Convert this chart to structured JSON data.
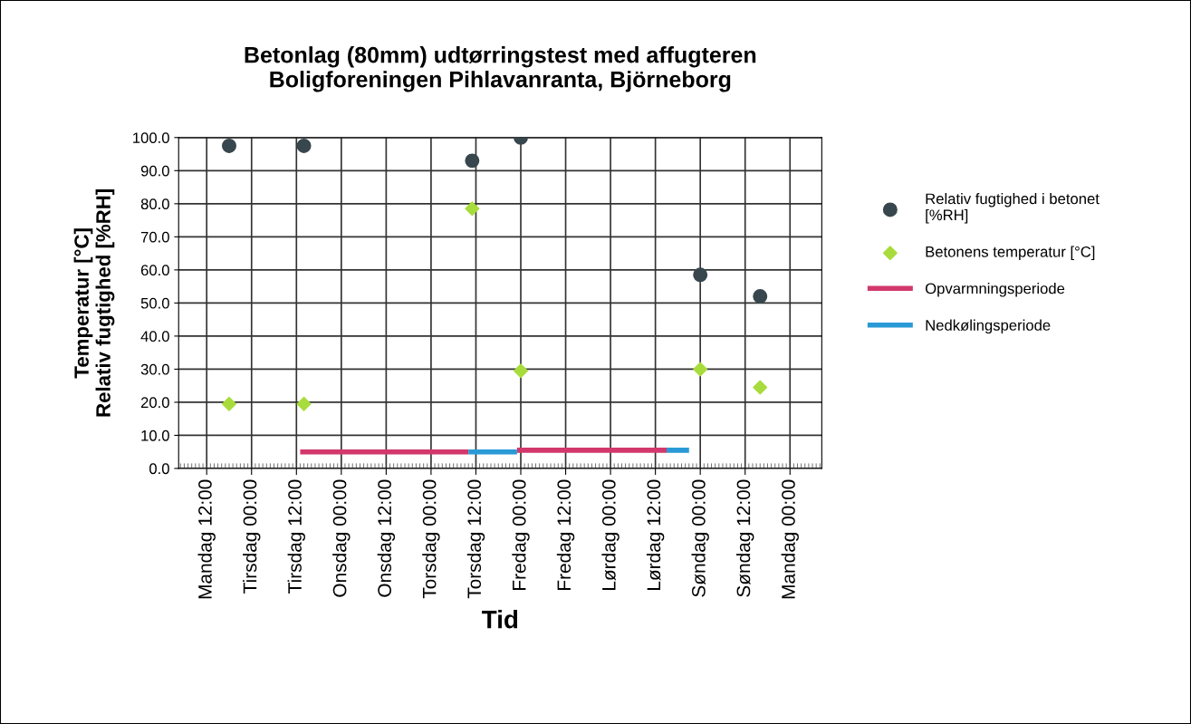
{
  "chart_data": {
    "type": "scatter",
    "title": "Betonlag (80mm) udtørringstest med affugteren\nBoligforeningen Pihlavanranta, Björneborg",
    "xlabel": "Tid",
    "ylabel": "Temperatur [°C]\nRelativ fugtighed [%RH]",
    "categories": [
      null,
      null,
      null,
      null,
      null,
      null,
      null,
      "Mandag 12:00",
      null,
      null,
      null,
      null,
      null,
      null,
      null,
      null,
      null,
      null,
      null,
      "Tirsdag 00:00",
      null,
      null,
      null,
      null,
      null,
      null,
      null,
      null,
      null,
      null,
      null,
      "Tirsdag 12:00",
      null,
      null,
      null,
      null,
      null,
      null,
      null,
      null,
      null,
      null,
      null,
      "Onsdag 00:00",
      null,
      null,
      null,
      null,
      null,
      null,
      null,
      null,
      null,
      null,
      null,
      "Onsdag 12:00",
      null,
      null,
      null,
      null,
      null,
      null,
      null,
      null,
      null,
      null,
      null,
      "Torsdag 00:00",
      null,
      null,
      null,
      null,
      null,
      null,
      null,
      null,
      null,
      null,
      null,
      "Torsdag 12:00",
      null,
      null,
      null,
      null,
      null,
      null,
      null,
      null,
      null,
      null,
      null,
      "Fredag 00:00",
      null,
      null,
      null,
      null,
      null,
      null,
      null,
      null,
      null,
      null,
      null,
      "Fredag 12:00",
      null,
      null,
      null,
      null,
      null,
      null,
      null,
      null,
      null,
      null,
      null,
      "Lørdag 00:00",
      null,
      null,
      null,
      null,
      null,
      null,
      null,
      null,
      null,
      null,
      null,
      "Lørdag 12:00",
      null,
      null,
      null,
      null,
      null,
      null,
      null,
      null,
      null,
      null,
      null,
      "Søndag 00:00",
      null,
      null,
      null,
      null,
      null,
      null,
      null,
      null,
      null,
      null,
      null,
      "Søndag 12:00",
      null,
      null,
      null,
      null,
      null,
      null,
      null,
      null,
      null,
      null,
      null,
      "Mandag 00:00",
      null,
      null,
      null,
      null,
      null,
      null,
      null,
      null
    ],
    "ylim": [
      0,
      100
    ],
    "yticks": [
      {
        "value": 0,
        "label": "0.0"
      },
      {
        "value": 10,
        "label": "10.0"
      },
      {
        "value": 20,
        "label": "20.0"
      },
      {
        "value": 30,
        "label": "30.0"
      },
      {
        "value": 40,
        "label": "40.0"
      },
      {
        "value": 50,
        "label": "50.0"
      },
      {
        "value": 60,
        "label": "60.0"
      },
      {
        "value": 70,
        "label": "70.0"
      },
      {
        "value": 80,
        "label": "80.0"
      },
      {
        "value": 90,
        "label": "90.0"
      },
      {
        "value": 100,
        "label": "100.0"
      }
    ],
    "grid": true,
    "legend": "right",
    "series": [
      {
        "name": "Relativ fugtighed i betonet\n[%RH]",
        "marker": "circle",
        "color": "#37474d",
        "values": [
          null,
          null,
          null,
          null,
          null,
          null,
          null,
          null,
          null,
          null,
          null,
          null,
          null,
          97.5,
          null,
          null,
          null,
          null,
          null,
          null,
          null,
          null,
          null,
          null,
          null,
          null,
          null,
          null,
          null,
          null,
          null,
          null,
          null,
          97.5,
          null,
          null,
          null,
          null,
          null,
          null,
          null,
          null,
          null,
          null,
          null,
          null,
          null,
          null,
          null,
          null,
          null,
          null,
          null,
          null,
          null,
          null,
          null,
          null,
          null,
          null,
          null,
          null,
          null,
          null,
          null,
          null,
          null,
          null,
          null,
          null,
          null,
          null,
          null,
          null,
          null,
          null,
          null,
          null,
          93,
          null,
          null,
          null,
          null,
          null,
          null,
          null,
          null,
          null,
          null,
          null,
          null,
          100,
          null,
          null,
          null,
          null,
          null,
          null,
          null,
          null,
          null,
          null,
          null,
          null,
          null,
          null,
          null,
          null,
          null,
          null,
          null,
          null,
          null,
          null,
          null,
          null,
          null,
          null,
          null,
          null,
          null,
          null,
          null,
          null,
          null,
          null,
          null,
          null,
          null,
          null,
          null,
          null,
          null,
          null,
          null,
          null,
          null,
          null,
          null,
          58.5,
          null,
          null,
          null,
          null,
          null,
          null,
          null,
          null,
          null,
          null,
          null,
          null,
          null,
          null,
          null,
          52,
          null,
          null,
          null,
          null,
          null,
          null,
          null,
          null,
          null,
          null,
          null,
          null,
          null,
          null,
          null,
          null
        ]
      },
      {
        "name": "Betonens temperatur [°C]",
        "marker": "diamond",
        "color": "#a8dc3c",
        "values": [
          null,
          null,
          null,
          null,
          null,
          null,
          null,
          null,
          null,
          null,
          null,
          null,
          null,
          19.5,
          null,
          null,
          null,
          null,
          null,
          null,
          null,
          null,
          null,
          null,
          null,
          null,
          null,
          null,
          null,
          null,
          null,
          null,
          null,
          19.5,
          null,
          null,
          null,
          null,
          null,
          null,
          null,
          null,
          null,
          null,
          null,
          null,
          null,
          null,
          null,
          null,
          null,
          null,
          null,
          null,
          null,
          null,
          null,
          null,
          null,
          null,
          null,
          null,
          null,
          null,
          null,
          null,
          null,
          null,
          null,
          null,
          null,
          null,
          null,
          null,
          null,
          null,
          null,
          null,
          78.5,
          null,
          null,
          null,
          null,
          null,
          null,
          null,
          null,
          null,
          null,
          null,
          null,
          29.5,
          null,
          null,
          null,
          null,
          null,
          null,
          null,
          null,
          null,
          null,
          null,
          null,
          null,
          null,
          null,
          null,
          null,
          null,
          null,
          null,
          null,
          null,
          null,
          null,
          null,
          null,
          null,
          null,
          null,
          null,
          null,
          null,
          null,
          null,
          null,
          null,
          null,
          null,
          null,
          null,
          null,
          null,
          null,
          null,
          null,
          null,
          null,
          30,
          null,
          null,
          null,
          null,
          null,
          null,
          null,
          null,
          null,
          null,
          null,
          null,
          null,
          null,
          null,
          24.5,
          null,
          null,
          null,
          null,
          null,
          null,
          null,
          null,
          null,
          null,
          null,
          null,
          null,
          null,
          null,
          null
        ]
      },
      {
        "name": "Opvarmningsperiode",
        "type": "line",
        "marker": "none",
        "color": "#d2386c",
        "values": [
          null,
          null,
          null,
          null,
          null,
          null,
          null,
          null,
          null,
          null,
          null,
          null,
          null,
          null,
          null,
          null,
          null,
          null,
          null,
          null,
          null,
          null,
          null,
          null,
          null,
          null,
          null,
          null,
          null,
          null,
          null,
          null,
          5,
          5,
          5,
          5,
          5,
          5,
          5,
          5,
          5,
          5,
          5,
          5,
          5,
          5,
          5,
          5,
          5,
          5,
          5,
          5,
          5,
          5,
          5,
          5,
          5,
          5,
          5,
          5,
          5,
          5,
          5,
          5,
          5,
          5,
          5,
          5,
          5,
          5,
          5,
          5,
          5,
          5,
          5,
          5,
          5,
          5,
          null,
          null,
          null,
          null,
          null,
          null,
          null,
          null,
          null,
          null,
          null,
          null,
          5.5,
          5.5,
          5.5,
          5.5,
          5.5,
          5.5,
          5.5,
          5.5,
          5.5,
          5.5,
          5.5,
          5.5,
          5.5,
          5.5,
          5.5,
          5.5,
          5.5,
          5.5,
          5.5,
          5.5,
          5.5,
          5.5,
          5.5,
          5.5,
          5.5,
          5.5,
          5.5,
          5.5,
          5.5,
          5.5,
          5.5,
          5.5,
          5.5,
          5.5,
          5.5,
          5.5,
          5.5,
          5.5,
          5.5,
          5.5,
          5.5,
          null,
          null,
          null,
          null,
          null,
          null,
          null,
          null,
          null,
          null,
          null,
          null,
          null,
          null,
          null,
          null,
          null,
          null,
          null,
          null,
          null,
          null,
          null,
          null,
          null,
          null,
          null,
          null,
          null,
          null,
          null,
          null,
          null,
          null,
          null,
          null,
          null,
          null,
          null,
          null,
          null
        ]
      },
      {
        "name": "Nedkølingsperiode",
        "type": "line",
        "marker": "none",
        "color": "#2a9ad6",
        "values": [
          null,
          null,
          null,
          null,
          null,
          null,
          null,
          null,
          null,
          null,
          null,
          null,
          null,
          null,
          null,
          null,
          null,
          null,
          null,
          null,
          null,
          null,
          null,
          null,
          null,
          null,
          null,
          null,
          null,
          null,
          null,
          null,
          null,
          null,
          null,
          null,
          null,
          null,
          null,
          null,
          null,
          null,
          null,
          null,
          null,
          null,
          null,
          null,
          null,
          null,
          null,
          null,
          null,
          null,
          null,
          null,
          null,
          null,
          null,
          null,
          null,
          null,
          null,
          null,
          null,
          null,
          null,
          null,
          null,
          null,
          null,
          null,
          null,
          null,
          null,
          null,
          null,
          5,
          5,
          5,
          5,
          5,
          5,
          5,
          5,
          5,
          5,
          5,
          5,
          5,
          5,
          null,
          null,
          null,
          null,
          null,
          null,
          null,
          null,
          null,
          null,
          null,
          null,
          null,
          null,
          null,
          null,
          null,
          null,
          null,
          null,
          null,
          null,
          null,
          null,
          null,
          null,
          null,
          null,
          null,
          null,
          null,
          null,
          null,
          null,
          null,
          null,
          null,
          null,
          null,
          5.5,
          5.5,
          5.5,
          5.5,
          5.5,
          5.5,
          5.5,
          null,
          null,
          null,
          null,
          null,
          null,
          null,
          null,
          null,
          null,
          null,
          null,
          null,
          null,
          null,
          null,
          null,
          null,
          null,
          null,
          null,
          null,
          null,
          null,
          null,
          null,
          null,
          null,
          null,
          null,
          null,
          null,
          null,
          null,
          null
        ]
      }
    ]
  }
}
